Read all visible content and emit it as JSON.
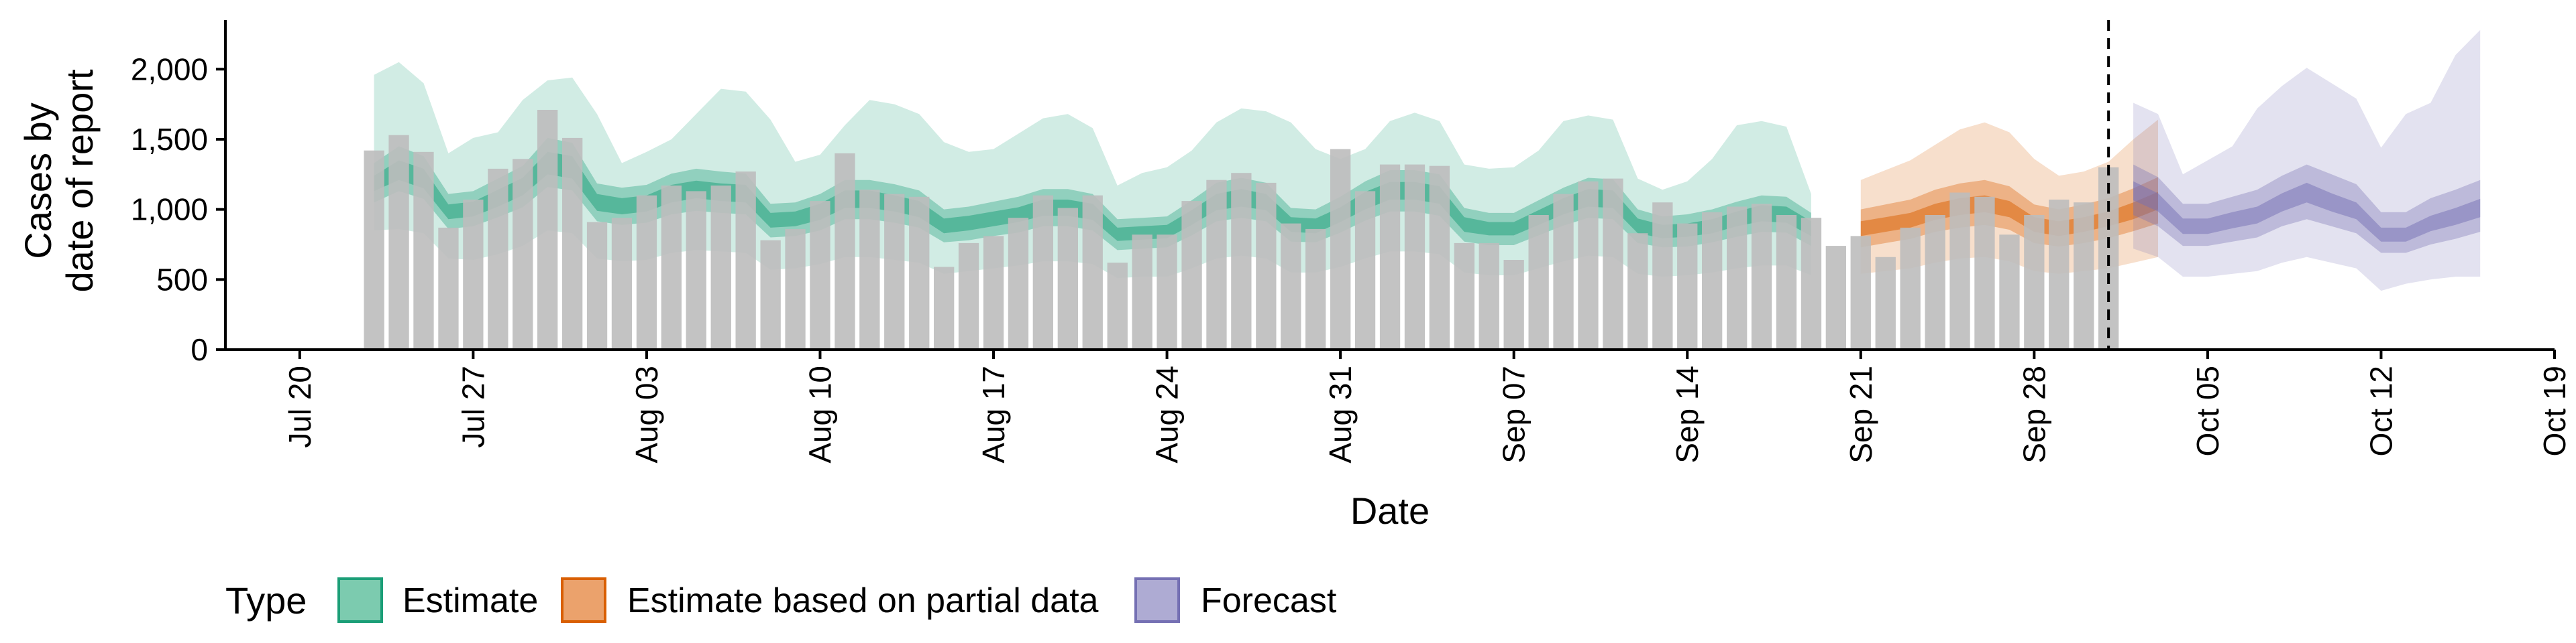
{
  "chart_data": {
    "type": "bar",
    "xlabel": "Date",
    "ylabel_lines": [
      "Cases by",
      "date of report"
    ],
    "ylim": [
      0,
      2350
    ],
    "xlim": [
      "2020-07-17",
      "2020-10-19"
    ],
    "y_ticks": [
      0,
      500,
      1000,
      1500,
      2000
    ],
    "y_tick_labels": [
      "0",
      "500",
      "1,000",
      "1,500",
      "2,000"
    ],
    "x_ticks": [
      "2020-07-20",
      "2020-07-27",
      "2020-08-03",
      "2020-08-10",
      "2020-08-17",
      "2020-08-24",
      "2020-08-31",
      "2020-09-07",
      "2020-09-14",
      "2020-09-21",
      "2020-09-28",
      "2020-10-05",
      "2020-10-12",
      "2020-10-19"
    ],
    "x_tick_labels": [
      "Jul 20",
      "Jul 27",
      "Aug 03",
      "Aug 10",
      "Aug 17",
      "Aug 24",
      "Aug 31",
      "Sep 07",
      "Sep 14",
      "Sep 21",
      "Sep 28",
      "Oct 05",
      "Oct 12",
      "Oct 19"
    ],
    "vline_date": "2020-10-01",
    "legend": {
      "title": "Type",
      "position": "bottom-left",
      "items": [
        {
          "label": "Estimate",
          "key": "estimate"
        },
        {
          "label": "Estimate based on partial data",
          "key": "partial"
        },
        {
          "label": "Forecast",
          "key": "forecast"
        }
      ]
    },
    "colors": {
      "bar": "#bdbdbd",
      "estimate": "#1b9e77",
      "partial": "#d95f02",
      "forecast": "#7570b3",
      "vline": "#000000"
    },
    "reported_cases": {
      "start_date": "2020-07-23",
      "values": [
        1420,
        1530,
        1410,
        870,
        1070,
        1290,
        1360,
        1710,
        1510,
        910,
        940,
        1100,
        1170,
        1130,
        1170,
        1270,
        780,
        860,
        1060,
        1400,
        1140,
        1110,
        1090,
        590,
        760,
        810,
        940,
        1100,
        1010,
        1100,
        620,
        820,
        820,
        1060,
        1210,
        1260,
        1190,
        900,
        860,
        1430,
        1130,
        1320,
        1320,
        1310,
        760,
        760,
        640,
        960,
        1110,
        1200,
        1220,
        830,
        1050,
        900,
        980,
        1020,
        1040,
        960,
        940,
        740,
        810,
        660,
        870,
        960,
        1120,
        1090,
        820,
        960,
        1070,
        1050,
        1300
      ]
    },
    "estimate": {
      "start_date": "2020-07-23",
      "median": [
        1180,
        1280,
        1220,
        980,
        1000,
        1080,
        1160,
        1330,
        1300,
        1050,
        1020,
        1040,
        1110,
        1140,
        1120,
        1110,
        920,
        930,
        980,
        1070,
        1070,
        1040,
        1000,
        880,
        900,
        930,
        960,
        1010,
        1010,
        980,
        820,
        830,
        840,
        940,
        1050,
        1080,
        1050,
        890,
        880,
        960,
        1060,
        1130,
        1130,
        1100,
        890,
        860,
        860,
        940,
        1020,
        1080,
        1070,
        880,
        840,
        850,
        880,
        930,
        970,
        960,
        860
      ],
      "lower_20": [
        1130,
        1210,
        1150,
        930,
        950,
        1020,
        1100,
        1250,
        1220,
        990,
        965,
        985,
        1050,
        1080,
        1060,
        1050,
        870,
        880,
        925,
        1010,
        1010,
        985,
        945,
        830,
        850,
        880,
        910,
        955,
        955,
        925,
        775,
        785,
        795,
        890,
        995,
        1020,
        995,
        840,
        830,
        910,
        1000,
        1070,
        1070,
        1040,
        840,
        815,
        815,
        890,
        965,
        1020,
        1010,
        830,
        795,
        805,
        830,
        880,
        915,
        905,
        810
      ],
      "upper_20": [
        1240,
        1350,
        1290,
        1035,
        1055,
        1140,
        1225,
        1410,
        1380,
        1110,
        1080,
        1100,
        1175,
        1205,
        1185,
        1175,
        975,
        985,
        1040,
        1135,
        1135,
        1100,
        1060,
        935,
        955,
        985,
        1015,
        1070,
        1070,
        1040,
        870,
        880,
        890,
        995,
        1110,
        1145,
        1110,
        945,
        935,
        1015,
        1125,
        1195,
        1195,
        1165,
        945,
        910,
        910,
        995,
        1080,
        1145,
        1135,
        935,
        890,
        900,
        930,
        985,
        1030,
        1020,
        915
      ],
      "lower_50": [
        1050,
        1130,
        1075,
        860,
        880,
        945,
        1015,
        1160,
        1135,
        915,
        890,
        905,
        965,
        990,
        975,
        965,
        800,
        810,
        850,
        930,
        930,
        905,
        870,
        765,
        780,
        810,
        835,
        880,
        880,
        850,
        710,
        720,
        730,
        815,
        915,
        940,
        915,
        770,
        765,
        835,
        920,
        985,
        985,
        955,
        770,
        745,
        745,
        815,
        885,
        940,
        930,
        760,
        730,
        735,
        765,
        805,
        840,
        835,
        740
      ],
      "upper_50": [
        1330,
        1450,
        1380,
        1110,
        1130,
        1220,
        1310,
        1510,
        1475,
        1185,
        1155,
        1175,
        1255,
        1290,
        1270,
        1255,
        1040,
        1050,
        1110,
        1210,
        1210,
        1180,
        1135,
        1000,
        1020,
        1055,
        1090,
        1145,
        1145,
        1110,
        930,
        940,
        950,
        1065,
        1190,
        1225,
        1190,
        1010,
        1000,
        1090,
        1200,
        1280,
        1280,
        1250,
        1010,
        975,
        975,
        1065,
        1155,
        1225,
        1215,
        1000,
        950,
        965,
        1000,
        1055,
        1100,
        1090,
        975
      ],
      "lower_90": [
        850,
        860,
        830,
        650,
        640,
        680,
        740,
        850,
        830,
        650,
        630,
        640,
        690,
        710,
        700,
        690,
        570,
        580,
        610,
        660,
        660,
        640,
        620,
        540,
        560,
        580,
        600,
        630,
        630,
        610,
        510,
        520,
        520,
        580,
        650,
        670,
        650,
        550,
        550,
        590,
        650,
        700,
        700,
        680,
        550,
        530,
        530,
        580,
        630,
        670,
        660,
        540,
        520,
        530,
        550,
        580,
        600,
        600,
        530
      ],
      "upper_90": [
        1960,
        2050,
        1900,
        1400,
        1510,
        1550,
        1780,
        1920,
        1940,
        1680,
        1330,
        1410,
        1500,
        1680,
        1860,
        1840,
        1640,
        1340,
        1390,
        1600,
        1780,
        1750,
        1680,
        1480,
        1410,
        1430,
        1540,
        1650,
        1680,
        1580,
        1170,
        1260,
        1300,
        1420,
        1620,
        1720,
        1700,
        1620,
        1430,
        1360,
        1430,
        1630,
        1690,
        1630,
        1320,
        1290,
        1300,
        1420,
        1630,
        1670,
        1640,
        1220,
        1140,
        1200,
        1360,
        1600,
        1630,
        1590,
        1110
      ]
    },
    "partial": {
      "start_date": "2020-09-21",
      "median": [
        860,
        890,
        920,
        980,
        1020,
        1040,
        1000,
        890,
        860,
        890,
        930,
        990,
        1060
      ],
      "lower_20": [
        810,
        840,
        870,
        925,
        960,
        980,
        945,
        840,
        810,
        840,
        880,
        930,
        1000
      ],
      "upper_20": [
        915,
        945,
        975,
        1040,
        1080,
        1100,
        1060,
        945,
        915,
        945,
        985,
        1050,
        1125
      ],
      "lower_50": [
        730,
        760,
        790,
        840,
        870,
        890,
        855,
        760,
        735,
        760,
        795,
        845,
        900
      ],
      "upper_50": [
        1000,
        1035,
        1070,
        1140,
        1185,
        1210,
        1165,
        1035,
        1000,
        1035,
        1080,
        1150,
        1230
      ],
      "lower_90": [
        540,
        560,
        580,
        620,
        650,
        660,
        630,
        560,
        540,
        560,
        580,
        620,
        660
      ],
      "upper_90": [
        1210,
        1280,
        1350,
        1460,
        1570,
        1620,
        1550,
        1360,
        1240,
        1270,
        1340,
        1500,
        1640
      ]
    },
    "forecast": {
      "start_date": "2020-10-02",
      "median": [
        1130,
        1050,
        880,
        880,
        920,
        960,
        1050,
        1120,
        1050,
        990,
        820,
        820,
        900,
        950,
        1010
      ],
      "lower_20": [
        1065,
        985,
        825,
        825,
        865,
        900,
        985,
        1050,
        985,
        930,
        770,
        770,
        845,
        890,
        945
      ],
      "upper_20": [
        1200,
        1115,
        935,
        935,
        980,
        1020,
        1115,
        1190,
        1115,
        1050,
        870,
        870,
        955,
        1010,
        1075
      ],
      "lower_50": [
        960,
        880,
        740,
        740,
        770,
        800,
        880,
        930,
        880,
        830,
        690,
        690,
        750,
        790,
        840
      ],
      "upper_50": [
        1320,
        1230,
        1040,
        1040,
        1090,
        1140,
        1240,
        1320,
        1250,
        1180,
        980,
        980,
        1080,
        1140,
        1210
      ],
      "lower_90": [
        720,
        660,
        520,
        520,
        540,
        560,
        620,
        660,
        620,
        580,
        420,
        470,
        500,
        520,
        520
      ],
      "upper_90": [
        1760,
        1680,
        1250,
        1350,
        1450,
        1720,
        1880,
        2010,
        1900,
        1790,
        1440,
        1680,
        1760,
        2100,
        2280
      ]
    }
  }
}
